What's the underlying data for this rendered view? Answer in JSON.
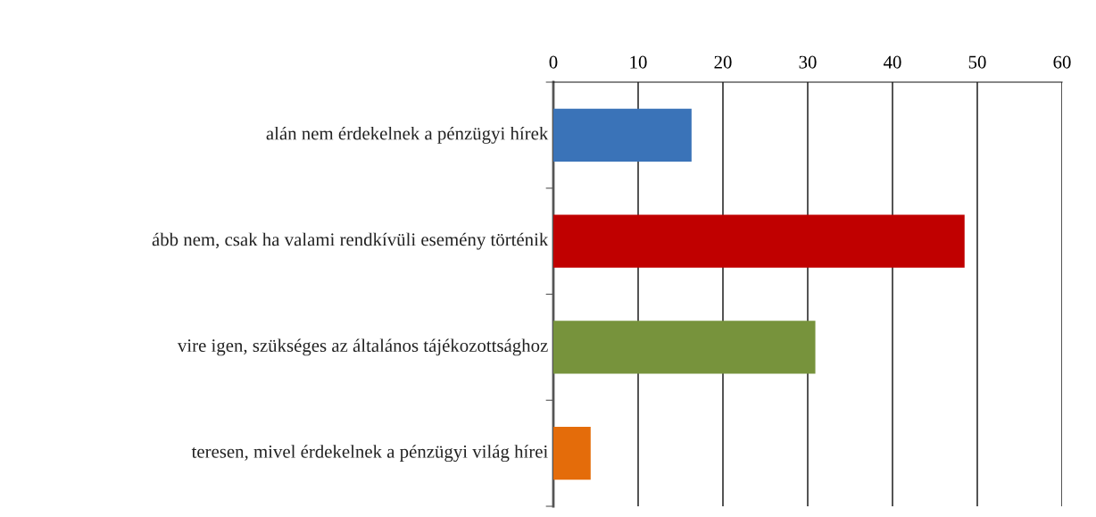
{
  "chart_data": {
    "type": "bar",
    "orientation": "horizontal",
    "categories": [
      "alán nem érdekelnek a pénzügyi hírek",
      "ább nem, csak ha valami rendkívüli esemény történik",
      "vire igen, szükséges az általános tájékozottsághoz",
      "teresen, mivel érdekelnek a pénzügyi világ hírei"
    ],
    "values": [
      16.3,
      48.5,
      30.9,
      4.4
    ],
    "colors": [
      "#3a73b8",
      "#c00000",
      "#77933c",
      "#e46c0a"
    ],
    "xlim": [
      0,
      60
    ],
    "xticks": [
      0,
      10,
      20,
      30,
      40,
      50,
      60
    ],
    "grid": "x"
  }
}
